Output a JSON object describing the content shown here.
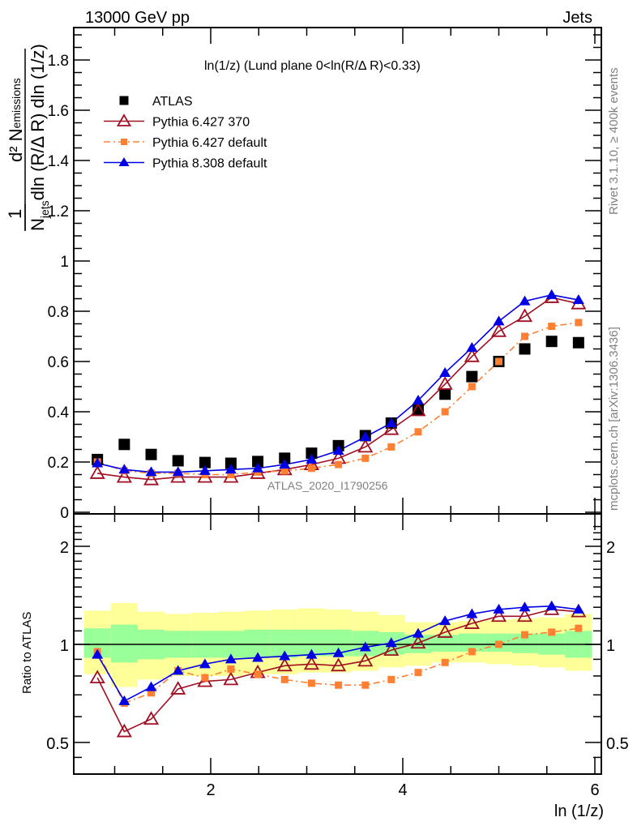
{
  "header": {
    "left": "13000 GeV pp",
    "right": "Jets"
  },
  "side_labels": {
    "top": "Rivet 3.1.10, ≥ 400k events",
    "bottom": "mcplots.cern.ch [arXiv:1306.3436]"
  },
  "watermark": "ATLAS_2020_I1790256",
  "chart_data": [
    {
      "type": "scatter",
      "panel": "main",
      "title": "ln(1/z) (Lund plane 0<ln(R/Δ R)<0.33)",
      "xlabel": "ln (1/z)",
      "ylabel": "1/N_jets d²N_emissions / dln (R/Δ R) dln (1/z)",
      "ylabel_parts": {
        "one": "1",
        "num": "d² N",
        "num_sub": "emissions",
        "den1": "N",
        "den_sub": "jets",
        "den2": "dln (R/Δ R) dln (1/z)"
      },
      "xlim": [
        0.68,
        6.03
      ],
      "ylim": [
        0,
        1.93
      ],
      "yticks": [
        0,
        0.2,
        0.4,
        0.6,
        0.8,
        1,
        1.2,
        1.4,
        1.6,
        1.8
      ],
      "ytick_labels": [
        "0",
        "0.2",
        "0.4",
        "0.6",
        "0.8",
        "1",
        "1.2",
        "1.4",
        "1.6",
        "1.8"
      ],
      "grid": false,
      "legend_position": "top-left",
      "x": [
        0.82,
        1.1,
        1.38,
        1.66,
        1.94,
        2.21,
        2.49,
        2.77,
        3.05,
        3.33,
        3.61,
        3.88,
        4.16,
        4.44,
        4.72,
        5.0,
        5.27,
        5.55,
        5.83
      ],
      "series": [
        {
          "name": "ATLAS",
          "color": "#000000",
          "marker": "square",
          "line": "none",
          "values": [
            0.21,
            0.27,
            0.23,
            0.205,
            0.198,
            0.195,
            0.202,
            0.215,
            0.235,
            0.265,
            0.305,
            0.355,
            0.41,
            0.47,
            0.54,
            0.6,
            0.65,
            0.68,
            0.675
          ]
        },
        {
          "name": "Pythia 6.427 370",
          "color": "#a00f23",
          "marker": "open-triangle",
          "line": "solid",
          "values": [
            0.155,
            0.14,
            0.13,
            0.14,
            0.14,
            0.14,
            0.155,
            0.17,
            0.19,
            0.215,
            0.26,
            0.33,
            0.405,
            0.51,
            0.62,
            0.72,
            0.78,
            0.855,
            0.83
          ]
        },
        {
          "name": "Pythia 6.427 default",
          "color": "#ff8032",
          "marker": "square",
          "line": "dashdot",
          "values": [
            0.2,
            0.165,
            0.155,
            0.155,
            0.15,
            0.15,
            0.16,
            0.165,
            0.175,
            0.19,
            0.215,
            0.26,
            0.32,
            0.4,
            0.5,
            0.6,
            0.7,
            0.74,
            0.755
          ]
        },
        {
          "name": "Pythia 8.308 default",
          "color": "#0000e6",
          "marker": "triangle",
          "line": "solid",
          "values": [
            0.195,
            0.17,
            0.16,
            0.16,
            0.165,
            0.17,
            0.175,
            0.19,
            0.21,
            0.245,
            0.3,
            0.355,
            0.445,
            0.555,
            0.655,
            0.76,
            0.84,
            0.865,
            0.845
          ]
        }
      ]
    },
    {
      "type": "scatter",
      "panel": "ratio",
      "ylabel": "Ratio to ATLAS",
      "xlabel": "ln (1/z)",
      "yscale": "log",
      "ylim": [
        0.42,
        2.4
      ],
      "yticks": [
        0.5,
        1,
        2
      ],
      "ytick_labels": [
        "0.5",
        "1",
        "2"
      ],
      "xticks": [
        2,
        4,
        6
      ],
      "xtick_labels": [
        "2",
        "4",
        "6"
      ],
      "reference_line": 1,
      "bands": {
        "bin_edges": [
          0.68,
          0.96,
          1.24,
          1.52,
          1.8,
          2.08,
          2.35,
          2.63,
          2.91,
          3.19,
          3.47,
          3.75,
          4.02,
          4.3,
          4.58,
          4.86,
          5.14,
          5.41,
          5.69,
          5.97
        ],
        "inner_color": "#99ff99",
        "outer_color": "#ffff99",
        "inner_lo": [
          0.91,
          0.88,
          0.9,
          0.91,
          0.91,
          0.91,
          0.91,
          0.91,
          0.92,
          0.92,
          0.92,
          0.93,
          0.94,
          0.95,
          0.95,
          0.95,
          0.94,
          0.93,
          0.91
        ],
        "inner_hi": [
          1.12,
          1.15,
          1.11,
          1.1,
          1.1,
          1.1,
          1.11,
          1.11,
          1.11,
          1.11,
          1.1,
          1.09,
          1.07,
          1.07,
          1.08,
          1.08,
          1.08,
          1.08,
          1.1
        ],
        "outer_lo": [
          0.81,
          0.74,
          0.78,
          0.8,
          0.8,
          0.8,
          0.81,
          0.81,
          0.82,
          0.82,
          0.83,
          0.85,
          0.86,
          0.88,
          0.88,
          0.87,
          0.86,
          0.85,
          0.83
        ],
        "outer_hi": [
          1.27,
          1.34,
          1.26,
          1.24,
          1.25,
          1.26,
          1.27,
          1.28,
          1.29,
          1.28,
          1.26,
          1.23,
          1.17,
          1.17,
          1.18,
          1.19,
          1.2,
          1.21,
          1.24
        ]
      },
      "x": [
        0.82,
        1.1,
        1.38,
        1.66,
        1.94,
        2.21,
        2.49,
        2.77,
        3.05,
        3.33,
        3.61,
        3.88,
        4.16,
        4.44,
        4.72,
        5.0,
        5.27,
        5.55,
        5.83
      ],
      "series": [
        {
          "name": "Pythia 6.427 370",
          "color": "#a00f23",
          "marker": "open-triangle",
          "line": "solid",
          "values": [
            0.79,
            0.54,
            0.59,
            0.73,
            0.77,
            0.78,
            0.82,
            0.86,
            0.87,
            0.86,
            0.89,
            0.96,
            1.01,
            1.09,
            1.16,
            1.22,
            1.22,
            1.28,
            1.26
          ]
        },
        {
          "name": "Pythia 6.427 default",
          "color": "#ff8032",
          "marker": "square",
          "line": "dashdot",
          "values": [
            0.95,
            0.66,
            0.71,
            0.83,
            0.79,
            0.84,
            0.81,
            0.78,
            0.76,
            0.75,
            0.75,
            0.78,
            0.82,
            0.88,
            0.95,
            1.0,
            1.07,
            1.09,
            1.12
          ]
        },
        {
          "name": "Pythia 8.308 default",
          "color": "#0000e6",
          "marker": "triangle",
          "line": "solid",
          "values": [
            0.93,
            0.67,
            0.74,
            0.83,
            0.87,
            0.9,
            0.91,
            0.92,
            0.93,
            0.94,
            0.98,
            1.01,
            1.08,
            1.18,
            1.24,
            1.28,
            1.3,
            1.31,
            1.28
          ]
        }
      ]
    }
  ]
}
